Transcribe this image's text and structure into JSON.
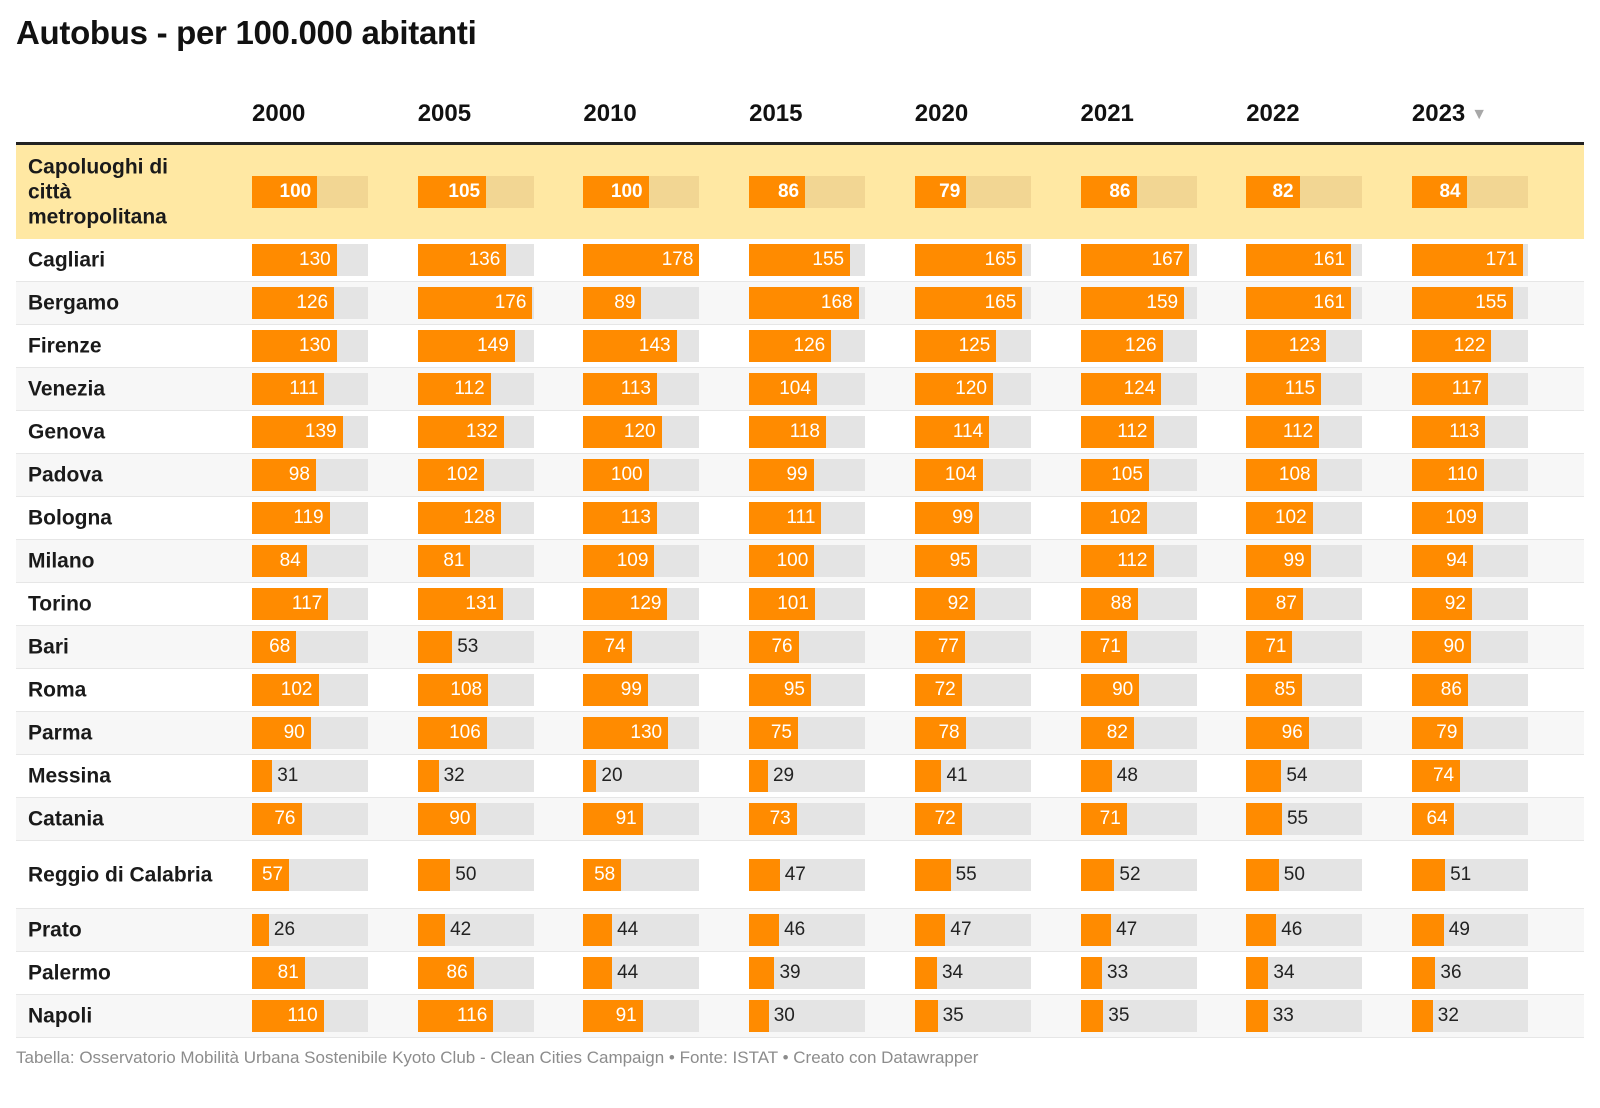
{
  "title": "Autobus - per 100.000 abitanti",
  "years": [
    "2000",
    "2005",
    "2010",
    "2015",
    "2020",
    "2021",
    "2022",
    "2023"
  ],
  "sort_indicator": "▼",
  "footer": "Tabella: Osservatorio Mobilità Urbana Sostenibile Kyoto Club - Clean Cities Campaign • Fonte: ISTAT • Creato con Datawrapper",
  "colors": {
    "bar": "#ff8b00",
    "track": "#e4e4e4",
    "highlight_bg": "#ffe8a3",
    "highlight_track": "#f2d693"
  },
  "chart_data": {
    "type": "table",
    "title": "Autobus - per 100.000 abitanti",
    "columns": [
      "2000",
      "2005",
      "2010",
      "2015",
      "2020",
      "2021",
      "2022",
      "2023"
    ],
    "sorted_by": "2023",
    "sort_order": "descending",
    "bar_scale_max": 178,
    "rows": [
      {
        "city": "Capoluoghi di città metropolitana",
        "highlight": true,
        "values": [
          100,
          105,
          100,
          86,
          79,
          86,
          82,
          84
        ]
      },
      {
        "city": "Cagliari",
        "values": [
          130,
          136,
          178,
          155,
          165,
          167,
          161,
          171
        ]
      },
      {
        "city": "Bergamo",
        "values": [
          126,
          176,
          89,
          168,
          165,
          159,
          161,
          155
        ]
      },
      {
        "city": "Firenze",
        "values": [
          130,
          149,
          143,
          126,
          125,
          126,
          123,
          122
        ]
      },
      {
        "city": "Venezia",
        "values": [
          111,
          112,
          113,
          104,
          120,
          124,
          115,
          117
        ]
      },
      {
        "city": "Genova",
        "values": [
          139,
          132,
          120,
          118,
          114,
          112,
          112,
          113
        ]
      },
      {
        "city": "Padova",
        "values": [
          98,
          102,
          100,
          99,
          104,
          105,
          108,
          110
        ]
      },
      {
        "city": "Bologna",
        "values": [
          119,
          128,
          113,
          111,
          99,
          102,
          102,
          109
        ]
      },
      {
        "city": "Milano",
        "values": [
          84,
          81,
          109,
          100,
          95,
          112,
          99,
          94
        ]
      },
      {
        "city": "Torino",
        "values": [
          117,
          131,
          129,
          101,
          92,
          88,
          87,
          92
        ]
      },
      {
        "city": "Bari",
        "values": [
          68,
          53,
          74,
          76,
          77,
          71,
          71,
          90
        ]
      },
      {
        "city": "Roma",
        "values": [
          102,
          108,
          99,
          95,
          72,
          90,
          85,
          86
        ]
      },
      {
        "city": "Parma",
        "values": [
          90,
          106,
          130,
          75,
          78,
          82,
          96,
          79
        ]
      },
      {
        "city": "Messina",
        "values": [
          31,
          32,
          20,
          29,
          41,
          48,
          54,
          74
        ]
      },
      {
        "city": "Catania",
        "values": [
          76,
          90,
          91,
          73,
          72,
          71,
          55,
          64
        ]
      },
      {
        "city": "Reggio di Calabria",
        "values": [
          57,
          50,
          58,
          47,
          55,
          52,
          50,
          51
        ]
      },
      {
        "city": "Prato",
        "values": [
          26,
          42,
          44,
          46,
          47,
          47,
          46,
          49
        ]
      },
      {
        "city": "Palermo",
        "values": [
          81,
          86,
          44,
          39,
          34,
          33,
          34,
          36
        ]
      },
      {
        "city": "Napoli",
        "values": [
          110,
          116,
          91,
          30,
          35,
          35,
          33,
          32
        ]
      }
    ]
  }
}
